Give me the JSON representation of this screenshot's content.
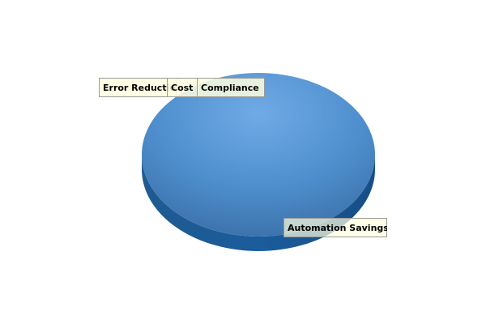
{
  "chart_data": {
    "type": "pie",
    "style": "3d",
    "title": "",
    "slices": [
      {
        "label": "Automation Savings",
        "value": 100,
        "color": "#4f8fce"
      },
      {
        "label": "Error Reduction",
        "value": 0,
        "color": "#4f8fce"
      },
      {
        "label": "Cost",
        "value": 0,
        "color": "#4f8fce"
      },
      {
        "label": "Compliance",
        "value": 0,
        "color": "#4f8fce"
      }
    ],
    "label_fill": "#ffffe0",
    "label_border": "#999999"
  }
}
